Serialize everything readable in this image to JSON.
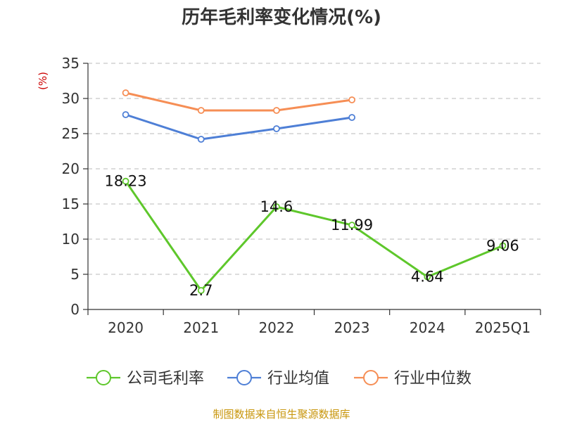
{
  "colors": {
    "company": "#5ec72b",
    "industry_avg": "#4e7fd6",
    "industry_median": "#f68e55",
    "ylabel": "#cc0000",
    "source": "#c8960c"
  },
  "source_text": "制图数据来自恒生聚源数据库",
  "chart_data": {
    "type": "line",
    "title": "历年毛利率变化情况(%)",
    "ylabel": "(%)",
    "xlabel": "",
    "categories": [
      "2020",
      "2021",
      "2022",
      "2023",
      "2024",
      "2025Q1"
    ],
    "ylim": [
      0,
      35
    ],
    "yticks": [
      0,
      5,
      10,
      15,
      20,
      25,
      30,
      35
    ],
    "grid": true,
    "legend_position": "bottom",
    "series": [
      {
        "name": "公司毛利率",
        "values": [
          18.23,
          2.7,
          14.6,
          11.99,
          4.64,
          9.06
        ],
        "show_labels": true
      },
      {
        "name": "行业均值",
        "values": [
          27.7,
          24.2,
          25.7,
          27.3,
          null,
          null
        ],
        "show_labels": false
      },
      {
        "name": "行业中位数",
        "values": [
          30.8,
          28.3,
          28.3,
          29.8,
          null,
          null
        ],
        "show_labels": false
      }
    ]
  }
}
